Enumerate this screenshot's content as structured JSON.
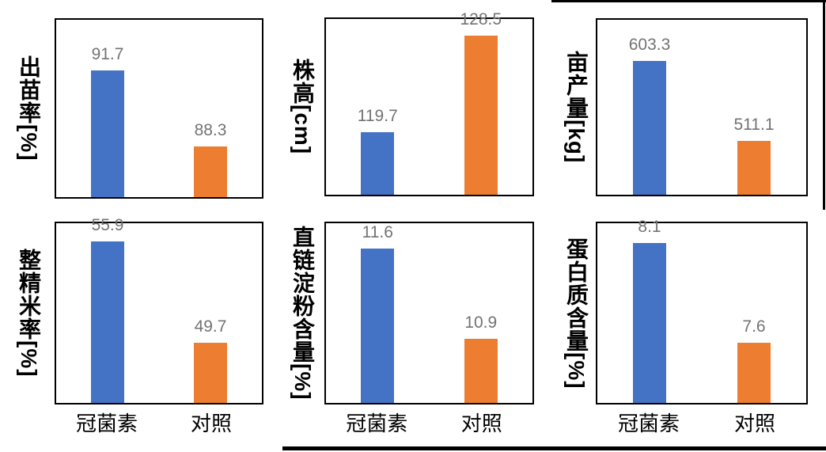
{
  "page": {
    "background": "#ffffff"
  },
  "colors": {
    "series": [
      "#4472C4",
      "#ED7D31"
    ],
    "value_label": "#737373",
    "axis_border": "#000000",
    "doc_line": "#000000"
  },
  "categories": [
    "冠菌素",
    "对照"
  ],
  "chart_data": [
    {
      "type": "bar",
      "ylabel": "出苗率[%]",
      "categories": [
        "冠菌素",
        "对照"
      ],
      "values": [
        91.7,
        88.3
      ],
      "ylim": [
        86,
        94
      ],
      "series_colors": [
        "#4472C4",
        "#ED7D31"
      ],
      "grid": false,
      "legend": false
    },
    {
      "type": "bar",
      "ylabel": "株高[cm]",
      "categories": [
        "冠菌素",
        "对照"
      ],
      "values": [
        119.7,
        128.5
      ],
      "ylim": [
        114,
        130
      ],
      "series_colors": [
        "#4472C4",
        "#ED7D31"
      ],
      "grid": false,
      "legend": false
    },
    {
      "type": "bar",
      "ylabel": "亩产量[kg]",
      "categories": [
        "冠菌素",
        "对照"
      ],
      "values": [
        603.3,
        511.1
      ],
      "ylim": [
        450,
        650
      ],
      "series_colors": [
        "#4472C4",
        "#ED7D31"
      ],
      "grid": false,
      "legend": false
    },
    {
      "type": "bar",
      "ylabel": "整精米率[%]",
      "categories": [
        "冠菌素",
        "对照"
      ],
      "values": [
        55.9,
        49.7
      ],
      "ylim": [
        46,
        57
      ],
      "series_colors": [
        "#4472C4",
        "#ED7D31"
      ],
      "grid": false,
      "legend": false
    },
    {
      "type": "bar",
      "ylabel": "直链淀粉含量[%]",
      "categories": [
        "冠菌素",
        "对照"
      ],
      "values": [
        11.6,
        10.9
      ],
      "ylim": [
        10.4,
        11.8
      ],
      "series_colors": [
        "#4472C4",
        "#ED7D31"
      ],
      "grid": false,
      "legend": false
    },
    {
      "type": "bar",
      "ylabel": "蛋白质含量[%]",
      "categories": [
        "冠菌素",
        "对照"
      ],
      "values": [
        8.1,
        7.6
      ],
      "ylim": [
        7.3,
        8.2
      ],
      "series_colors": [
        "#4472C4",
        "#ED7D31"
      ],
      "grid": false,
      "legend": false
    }
  ]
}
